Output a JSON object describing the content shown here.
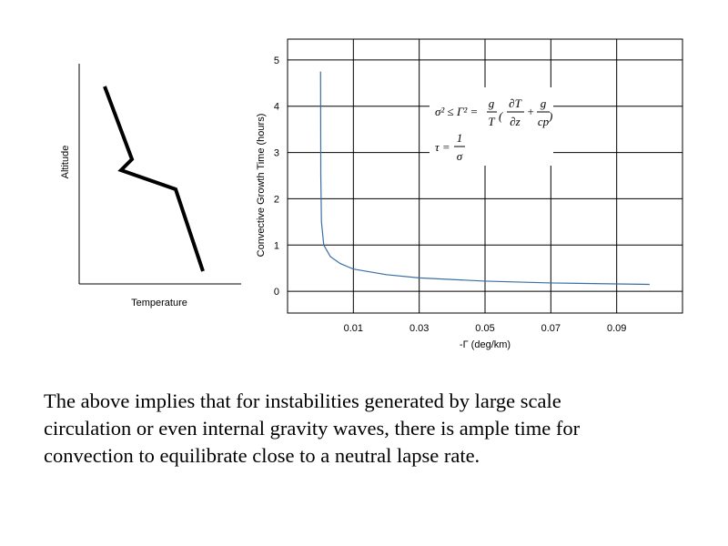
{
  "chart_data": [
    {
      "type": "schematic",
      "x_label": "Temperature",
      "y_label": "Altitude"
    },
    {
      "type": "line",
      "x_label": "-Γ (deg/km)",
      "y_label": "Convective Growth Time (hours)",
      "x": [
        3e-05,
        0.0001,
        0.0003,
        0.001,
        0.003,
        0.006,
        0.01,
        0.02,
        0.03,
        0.05,
        0.07,
        0.09,
        0.1
      ],
      "series": [
        {
          "name": "τ",
          "color": "#3a6ea5",
          "values": [
            4.75,
            2.5,
            1.5,
            1.0,
            0.75,
            0.6,
            0.48,
            0.36,
            0.29,
            0.22,
            0.18,
            0.16,
            0.15
          ]
        }
      ],
      "xlim": [
        -0.01,
        0.11
      ],
      "ylim": [
        -0.47,
        5.45
      ],
      "xticks": [
        0.01,
        0.03,
        0.05,
        0.07,
        0.09
      ],
      "yticks": [
        0,
        1,
        2,
        3,
        4,
        5
      ],
      "grid": true,
      "annotations": {
        "lhs": "σ² ≤ Γ² =",
        "f1_num": "g",
        "f1_den": "T",
        "f2_num": "∂T",
        "f2_den": "∂z",
        "plus": "+",
        "f3_num": "g",
        "f3_den": "cp",
        "tau_lhs": "τ =",
        "tau_num": "1",
        "tau_den": "σ"
      }
    }
  ],
  "body_text": [
    "The above implies that for instabilities generated by large scale",
    "circulation or even internal gravity waves, there is ample time for",
    "convection to equilibrate close to a neutral lapse rate."
  ]
}
